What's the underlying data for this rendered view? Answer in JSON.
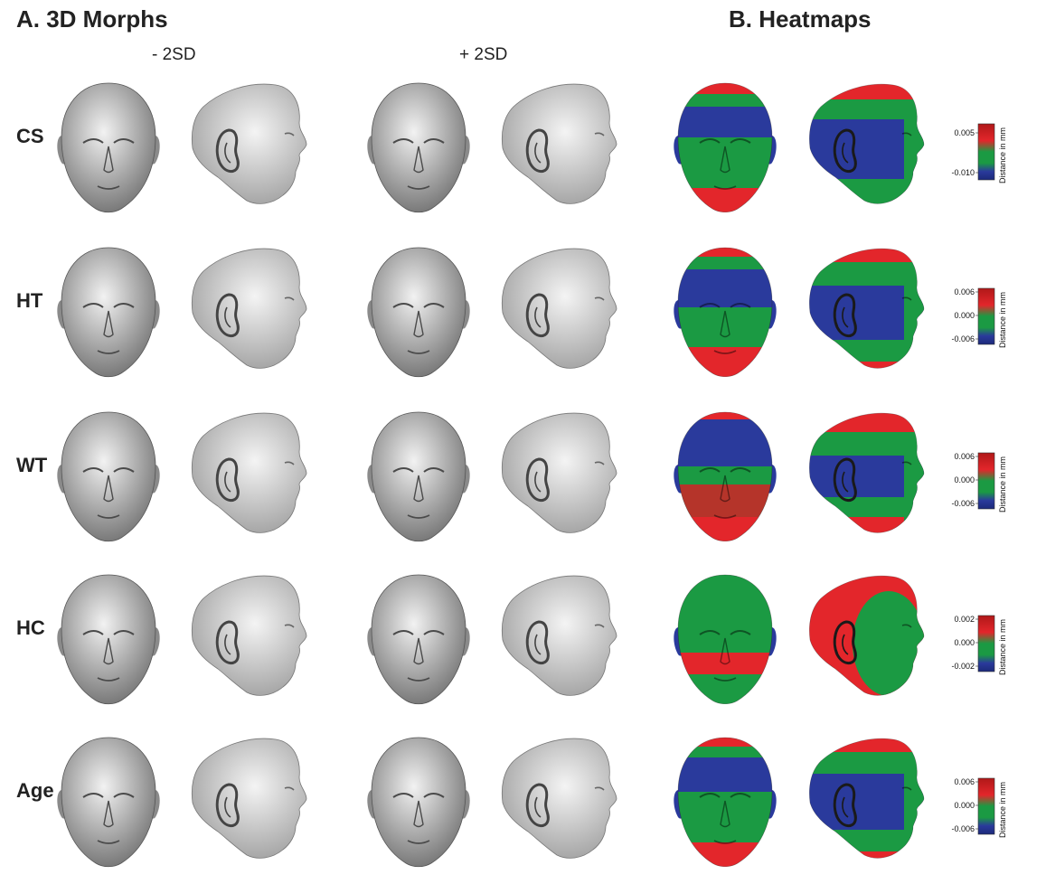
{
  "panels": {
    "a_title": "A. 3D Morphs",
    "b_title": "B. Heatmaps"
  },
  "columns": {
    "minus": "- 2SD",
    "plus": "+ 2SD"
  },
  "colorbar_unit": "Distance in mm",
  "colors": {
    "red": "#e3262b",
    "green": "#1b9a43",
    "blue": "#2a3a9c",
    "dark_red": "#b5342a"
  },
  "rows": [
    {
      "label": "CS",
      "ticks": [
        "0.005",
        "-0.010"
      ]
    },
    {
      "label": "HT",
      "ticks": [
        "0.006",
        "0.000",
        "-0.006"
      ]
    },
    {
      "label": "WT",
      "ticks": [
        "0.006",
        "0.000",
        "-0.006"
      ]
    },
    {
      "label": "HC",
      "ticks": [
        "0.002",
        "0.000",
        "-0.002"
      ]
    },
    {
      "label": "Age",
      "ticks": [
        "0.006",
        "0.000",
        "-0.006"
      ]
    }
  ]
}
